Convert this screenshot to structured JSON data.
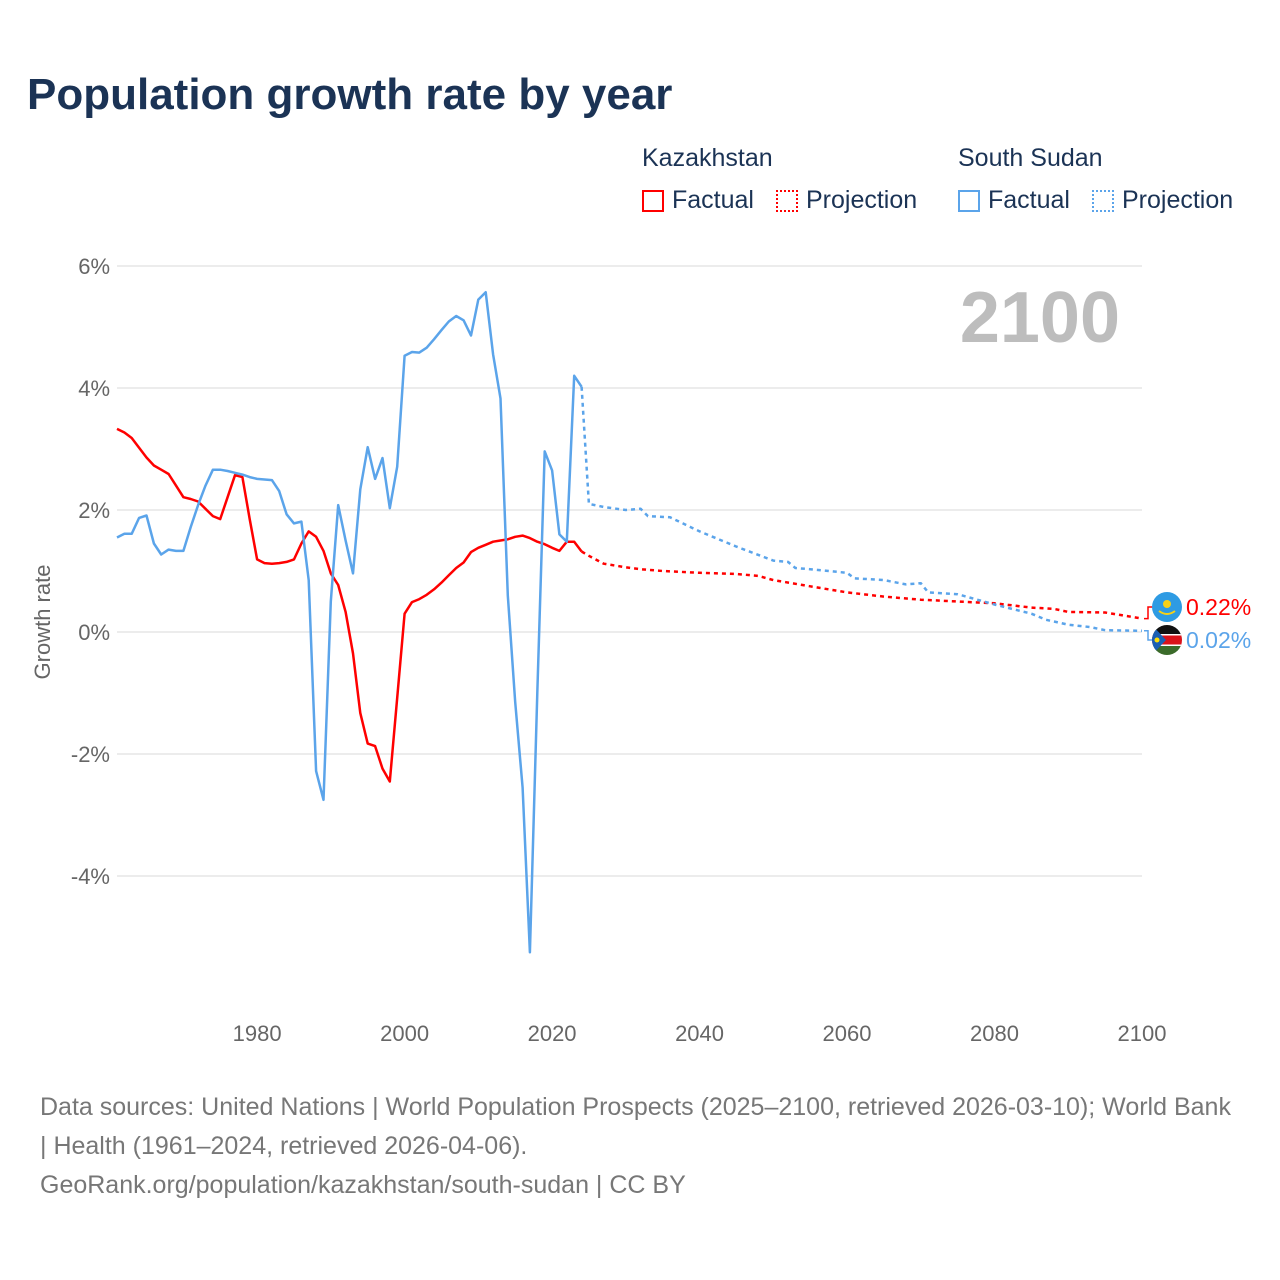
{
  "title": "Population growth rate by year",
  "legend": {
    "groups": [
      {
        "name": "Kazakhstan",
        "factual": "Factual",
        "projection": "Projection",
        "color": "#ff0000"
      },
      {
        "name": "South Sudan",
        "factual": "Factual",
        "projection": "Projection",
        "color": "#5ba4ea"
      }
    ]
  },
  "year_label": "2100",
  "footer": {
    "sources": "Data sources: United Nations | World Population Prospects (2025–2100, retrieved 2026-03-10); World Bank | Health (1961–2024, retrieved 2026-04-06).",
    "link": "GeoRank.org/population/kazakhstan/south-sudan | CC BY"
  },
  "chart_data": {
    "type": "line",
    "title": "Population growth rate by year",
    "xlabel": "",
    "ylabel": "Growth rate",
    "xlim": [
      1961,
      2100
    ],
    "ylim": [
      -5.9,
      6.2
    ],
    "x_ticks": [
      1980,
      2000,
      2020,
      2040,
      2060,
      2080,
      2100
    ],
    "x_tick_labels": [
      "1980",
      "2000",
      "2020",
      "2040",
      "2060",
      "2080",
      "2100"
    ],
    "y_ticks": [
      6,
      4,
      2,
      0,
      -2,
      -4
    ],
    "y_tick_labels": [
      "6%",
      "4%",
      "2%",
      "0%",
      "-2%",
      "-4%"
    ],
    "grid": true,
    "legend_position": "top-right",
    "series": [
      {
        "name": "Kazakhstan Factual",
        "color": "#ff0000",
        "dash": false,
        "x_start": 1961,
        "values": [
          3.33,
          3.27,
          3.18,
          3.02,
          2.86,
          2.73,
          2.66,
          2.59,
          2.4,
          2.21,
          2.18,
          2.14,
          2.02,
          1.9,
          1.85,
          2.21,
          2.57,
          2.54,
          1.85,
          1.19,
          1.13,
          1.12,
          1.13,
          1.15,
          1.19,
          1.45,
          1.65,
          1.56,
          1.33,
          0.96,
          0.77,
          0.33,
          -0.35,
          -1.33,
          -1.83,
          -1.87,
          -2.24,
          -2.45,
          -1.08,
          0.3,
          0.49,
          0.54,
          0.61,
          0.7,
          0.81,
          0.93,
          1.05,
          1.14,
          1.31,
          1.38,
          1.43,
          1.48,
          1.5,
          1.52,
          1.56,
          1.58,
          1.54,
          1.48,
          1.44,
          1.38,
          1.33,
          1.48,
          1.48,
          1.32
        ]
      },
      {
        "name": "Kazakhstan Projection",
        "color": "#ff0000",
        "dash": true,
        "x": [
          2024,
          2025,
          2027,
          2030,
          2032,
          2035,
          2040,
          2045,
          2048,
          2050,
          2055,
          2060,
          2065,
          2070,
          2075,
          2080,
          2085,
          2088,
          2090,
          2095,
          2098,
          2100
        ],
        "values": [
          1.32,
          1.25,
          1.12,
          1.06,
          1.03,
          1.0,
          0.97,
          0.95,
          0.92,
          0.85,
          0.75,
          0.65,
          0.58,
          0.53,
          0.5,
          0.47,
          0.4,
          0.38,
          0.33,
          0.32,
          0.26,
          0.22
        ]
      },
      {
        "name": "South Sudan Factual",
        "color": "#5ba4ea",
        "dash": false,
        "x_start": 1961,
        "values": [
          1.55,
          1.61,
          1.61,
          1.87,
          1.91,
          1.45,
          1.27,
          1.35,
          1.33,
          1.33,
          1.72,
          2.08,
          2.4,
          2.66,
          2.66,
          2.64,
          2.61,
          2.58,
          2.54,
          2.51,
          2.5,
          2.49,
          2.31,
          1.93,
          1.78,
          1.81,
          0.85,
          -2.28,
          -2.75,
          0.5,
          2.08,
          1.5,
          0.96,
          2.34,
          3.03,
          2.51,
          2.85,
          2.03,
          2.71,
          4.53,
          4.59,
          4.58,
          4.66,
          4.8,
          4.95,
          5.09,
          5.18,
          5.11,
          4.86,
          5.45,
          5.57,
          4.55,
          3.83,
          0.6,
          -1.15,
          -2.55,
          -5.25,
          -1.0,
          2.96,
          2.65,
          1.6,
          1.48,
          4.2,
          4.02
        ]
      },
      {
        "name": "South Sudan Projection",
        "color": "#5ba4ea",
        "dash": true,
        "x": [
          2024,
          2025,
          2027,
          2030,
          2032,
          2033,
          2036,
          2040,
          2045,
          2050,
          2052,
          2053,
          2055,
          2060,
          2061,
          2065,
          2068,
          2070,
          2071,
          2075,
          2080,
          2085,
          2087,
          2090,
          2093,
          2095,
          2100
        ],
        "values": [
          4.02,
          2.1,
          2.05,
          2.0,
          2.02,
          1.9,
          1.88,
          1.65,
          1.4,
          1.17,
          1.15,
          1.05,
          1.03,
          0.97,
          0.88,
          0.85,
          0.78,
          0.8,
          0.65,
          0.62,
          0.45,
          0.3,
          0.2,
          0.12,
          0.08,
          0.03,
          0.02
        ]
      }
    ],
    "end_labels": [
      {
        "country": "Kazakhstan",
        "value": 0.22,
        "label": "0.22%",
        "color": "#ff0000"
      },
      {
        "country": "South Sudan",
        "value": 0.02,
        "label": "0.02%",
        "color": "#5ba4ea"
      }
    ]
  }
}
